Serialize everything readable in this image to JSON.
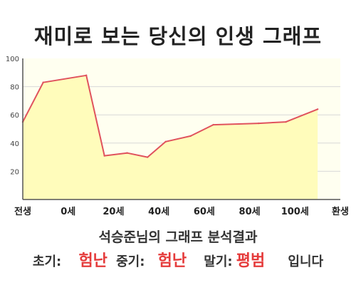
{
  "title": "재미로 보는 당신의 인생 그래프",
  "chart_data": {
    "type": "area",
    "title": "",
    "xlabel": "",
    "ylabel": "",
    "x_ticks": [
      "전생",
      "0세",
      "20세",
      "40세",
      "60세",
      "80세",
      "100세",
      "환생"
    ],
    "y_ticks": [
      "20",
      "40",
      "60",
      "80",
      "100"
    ],
    "ylim": [
      0,
      100
    ],
    "grid": true,
    "x": [
      0,
      0.45,
      1.4,
      1.8,
      2.3,
      2.75,
      3.15,
      3.7,
      4.2,
      5.2,
      5.8,
      6.5
    ],
    "series": [
      {
        "values": [
          55,
          83,
          88,
          31,
          33,
          30,
          41,
          45,
          53,
          54,
          55,
          64
        ]
      }
    ],
    "colors": {
      "fill": "#fffcbb",
      "line": "#e0525d",
      "plot_bg": "#fffff0",
      "grid": "#d8d8d8"
    }
  },
  "summary": {
    "title": "석승준님의 그래프 분석결과",
    "early_label": "초기:",
    "early_value": "험난",
    "mid_label": "중기:",
    "mid_value": "험난",
    "late_label": "말기:",
    "late_value": "평범",
    "suffix": "입니다"
  }
}
